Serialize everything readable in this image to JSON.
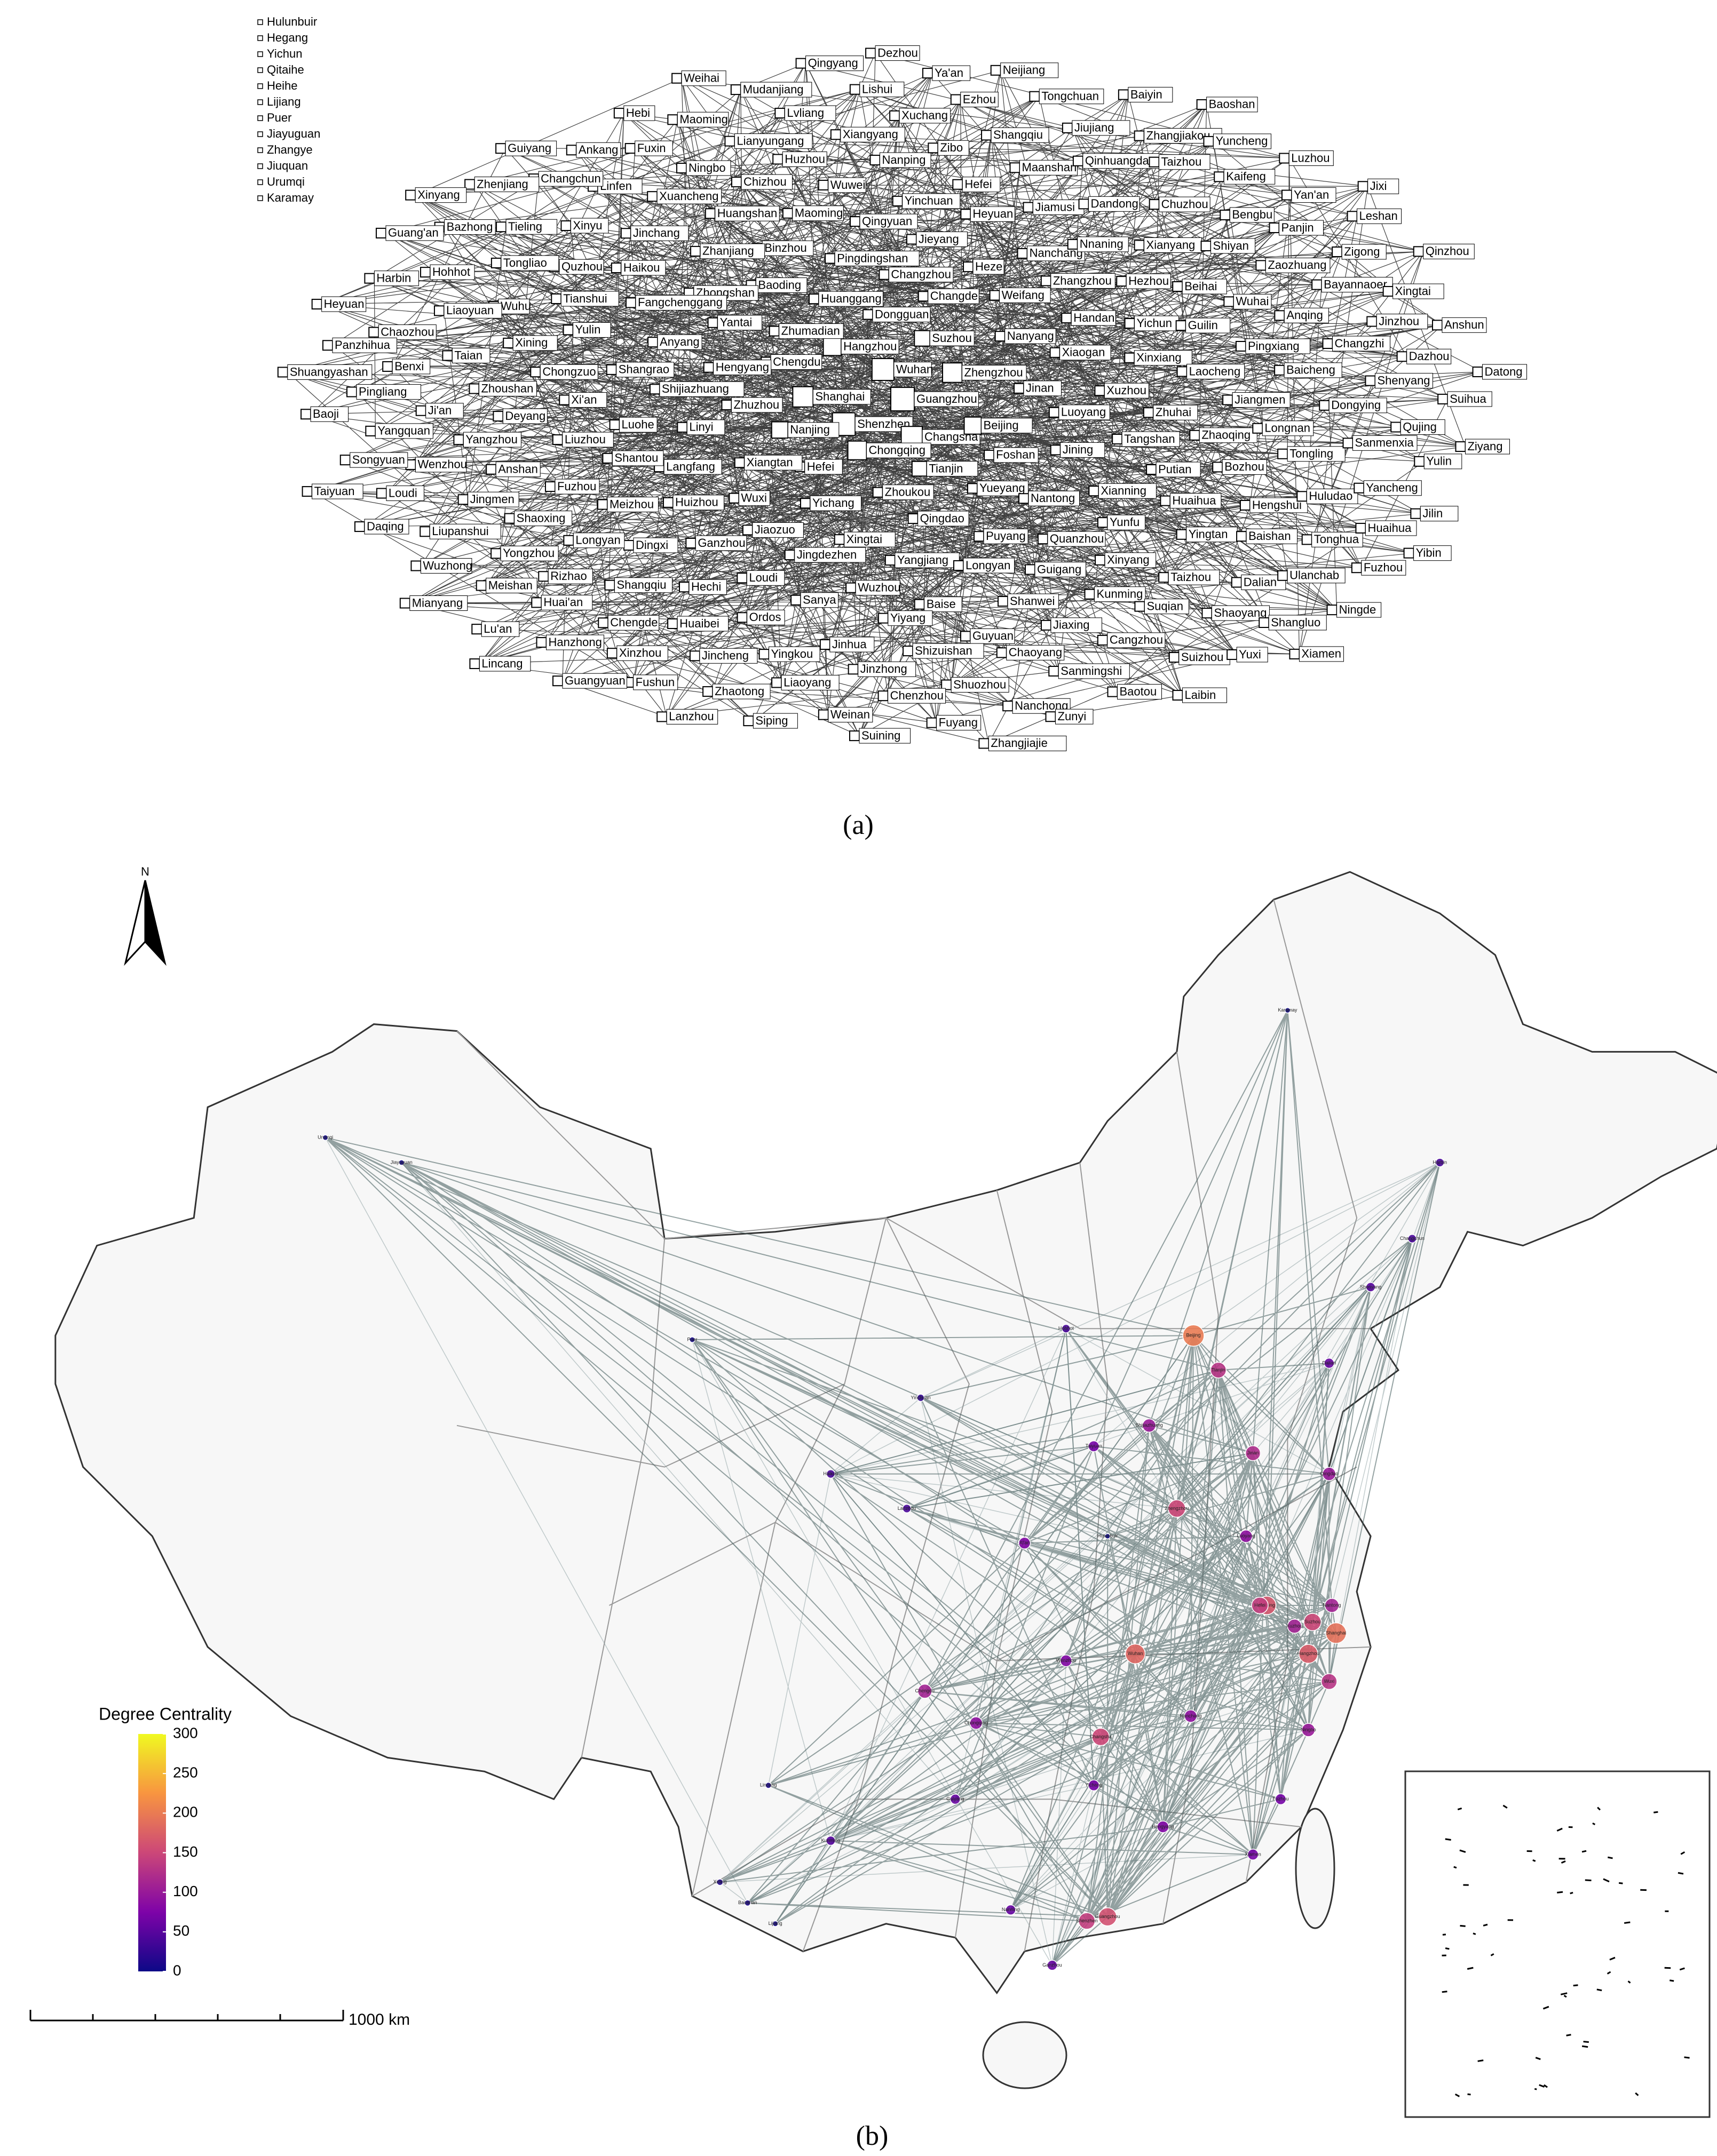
{
  "figure": {
    "panel_a": {
      "label": "(a)",
      "isolates": [
        "Hulunbuir",
        "Hegang",
        "Yichun",
        "Qitaihe",
        "Heihe",
        "Lijiang",
        "Puer",
        "Jiayuguan",
        "Zhangye",
        "Jiuquan",
        "Urumqi",
        "Karamay"
      ],
      "nodes": [
        "Guangzhou",
        "Shenzhen",
        "Wuhan",
        "Changsha",
        "Shanghai",
        "Zhengzhou",
        "Chongqing",
        "Hangzhou",
        "Beijing",
        "Nanjing",
        "Suzhou",
        "Tianjin",
        "Chengdu",
        "Jinan",
        "Hefei",
        "Dongguan",
        "Foshan",
        "Zhuzhou",
        "Nanyang",
        "Zhoukou",
        "Zhumadian",
        "Luoyang",
        "Xiangtan",
        "Changde",
        "Yueyang",
        "Hengyang",
        "Xiaogan",
        "Yichang",
        "Huanggang",
        "Jining",
        "Linyi",
        "Weifang",
        "Qingdao",
        "Yantai",
        "Xuzhou",
        "Wuxi",
        "Changzhou",
        "Nantong",
        "Shijiazhuang",
        "Handan",
        "Xingtai",
        "Baoding",
        "Tangshan",
        "Langfang",
        "Heze",
        "Puyang",
        "Anyang",
        "Xinxiang",
        "Jiaozuo",
        "Pingdingshan",
        "Xianning",
        "Luohe",
        "Zhangzhou",
        "Yangjiang",
        "Zhongshan",
        "Zhuhai",
        "Huizhou",
        "Jieyang",
        "Quanzhou",
        "Shangrao",
        "Yichun",
        "Jingdezhen",
        "Binzhou",
        "Putian",
        "Shantou",
        "Nanchang",
        "Longyan",
        "Fangchenggang",
        "Laocheng",
        "Ganzhou",
        "Qingyuan",
        "Yunfu",
        "Xi'an",
        "Hezhou",
        "Wuzhou",
        "Zhanjiang",
        "Zhaoqing",
        "Meizhou",
        "Heyuan",
        "Guigang",
        "Yulin",
        "Guilin",
        "Loudi",
        "Maoming",
        "Huaihua",
        "Liuzhou",
        "Nnaning",
        "Baise",
        "Haikou",
        "Jiangmen",
        "Dingxi",
        "Yinchuan",
        "Xinyang",
        "Chongzuo",
        "Beihai",
        "Sanya",
        "Huangshan",
        "Bozhou",
        "Fuzhou",
        "Jiamusi",
        "Shanwei",
        "Tianshui",
        "Pingxiang",
        "Hechi",
        "Wuwei",
        "Yingtan",
        "Deyang",
        "Xianyang",
        "Yiyang",
        "Jinchang",
        "Longnan",
        "Longyan",
        "Hefei",
        "Kunming",
        "Xining",
        "Wuhai",
        "Ordos",
        "Chizhou",
        "Hengshui",
        "Anshan",
        "Dandong",
        "Guyuan",
        "Quzhou",
        "Baicheng",
        "Shangqiu",
        "Nanping",
        "Taizhou",
        "Zhoushan",
        "Shiyan",
        "Jinhua",
        "Xuancheng",
        "Tongling",
        "Shaoxing",
        "Maanshan",
        "Jiaxing",
        "Wuhu",
        "Anqing",
        "Huaibei",
        "Huzhou",
        "Baishan",
        "Yangzhou",
        "Chuzhou",
        "Shizuishan",
        "Xinyu",
        "Dongying",
        "Rizhao",
        "Zibo",
        "Suqian",
        "Taian",
        "Zaozhuang",
        "Yingkou",
        "Ningbo",
        "Huludao",
        "Jingmen",
        "Qinhuangdao",
        "Chaoyang",
        "Tongliao",
        "Changzhi",
        "Chengde",
        "Xiangyang",
        "Dalian",
        "Ji'an",
        "Bengbu",
        "Jinzhong",
        "Linfen",
        "Sanmenxia",
        "Yongzhou",
        "Shangqiu",
        "Cangzhou",
        "Liaoyuan",
        "Bayannaoer",
        "Jincheng",
        "Lianyungang",
        "Tonghua",
        "Wenzhou",
        "Taizhou",
        "Shuozhou",
        "Tieling",
        "Shenyang",
        "Huai'an",
        "Xuchang",
        "Shaoyang",
        "Benxi",
        "Panjin",
        "Liaoyang",
        "Fuxin",
        "Yancheng",
        "Liupanshui",
        "Jiujiang",
        "Sanmingshi",
        "Hohhot",
        "Jinzhou",
        "Xinzhou",
        "Lvliang",
        "Ulanchab",
        "Yangquan",
        "Kaifeng",
        "Chenzhou",
        "Changchun",
        "Qujing",
        "Meishan",
        "Ezhou",
        "Suizhou",
        "Chaozhou",
        "Zigong",
        "Zhaotong",
        "Maoming",
        "Huaihua",
        "Loudi",
        "Zhangjiakou",
        "Nanchong",
        "Bazhong",
        "Dazhou",
        "Hanzhong",
        "Lishui",
        "Shangluo",
        "Pingliang",
        "Yan'an",
        "Weinan",
        "Ankang",
        "Yulin",
        "Wuzhong",
        "Tongchuan",
        "Baotou",
        "Harbin",
        "Xingtai",
        "Fushun",
        "Mudanjiang",
        "Fuzhou",
        "Songyuan",
        "Yuncheng",
        "Fuyang",
        "Zhenjiang",
        "Suihua",
        "Lu'an",
        "Ya'an",
        "Yuxi",
        "Panzhihua",
        "Leshan",
        "Siping",
        "Hebi",
        "Jilin",
        "Daqing",
        "Baiyin",
        "Zunyi",
        "Guang'an",
        "Anshun",
        "Guangyuan",
        "Qingyang",
        "Ningde",
        "Baoji",
        "Luzhou",
        "Suining",
        "Guiyang",
        "Ziyang",
        "Mianyang",
        "Neijiang",
        "Laibin",
        "Heyuan",
        "Qinzhou",
        "Lanzhou",
        "Weihai",
        "Yibin",
        "Taiyuan",
        "Baoshan",
        "Zhangjiajie",
        "Xinyang",
        "Datong",
        "Lincang",
        "Dezhou",
        "Xiamen",
        "Shuangyashan",
        "Jixi"
      ]
    },
    "panel_b": {
      "label": "(b)",
      "north": "N",
      "scale_bar": "1000 km",
      "legend": {
        "title": "Degree Centrality",
        "range": [
          0,
          300
        ],
        "ticks": [
          0,
          50,
          100,
          150,
          200,
          250,
          300
        ]
      },
      "cities": [
        {
          "name": "Beijing",
          "degree": 200
        },
        {
          "name": "Tianjin",
          "degree": 130
        },
        {
          "name": "Shanghai",
          "degree": 190
        },
        {
          "name": "Hangzhou",
          "degree": 170
        },
        {
          "name": "Nanjing",
          "degree": 165
        },
        {
          "name": "Suzhou",
          "degree": 150
        },
        {
          "name": "Wuhan",
          "degree": 180
        },
        {
          "name": "Changsha",
          "degree": 150
        },
        {
          "name": "Guangzhou",
          "degree": 160
        },
        {
          "name": "Shenzhen",
          "degree": 140
        },
        {
          "name": "Zhengzhou",
          "degree": 150
        },
        {
          "name": "Hefei",
          "degree": 140
        },
        {
          "name": "Jinan",
          "degree": 120
        },
        {
          "name": "Chengdu",
          "degree": 110
        },
        {
          "name": "Chongqing",
          "degree": 90
        },
        {
          "name": "Xi'an",
          "degree": 80
        },
        {
          "name": "Nanchang",
          "degree": 90
        },
        {
          "name": "Shijiazhuang",
          "degree": 100
        },
        {
          "name": "Qingdao",
          "degree": 100
        },
        {
          "name": "Nantong",
          "degree": 110
        },
        {
          "name": "Taiyuan",
          "degree": 70
        },
        {
          "name": "Fuzhou",
          "degree": 70
        },
        {
          "name": "Xiamen",
          "degree": 70
        },
        {
          "name": "Guiyang",
          "degree": 60
        },
        {
          "name": "Nanning",
          "degree": 60
        },
        {
          "name": "Kunming",
          "degree": 50
        },
        {
          "name": "Dalian",
          "degree": 60
        },
        {
          "name": "Shenyang",
          "degree": 50
        },
        {
          "name": "Changchun",
          "degree": 40
        },
        {
          "name": "Harbin",
          "degree": 40
        },
        {
          "name": "Hohhot",
          "degree": 40
        },
        {
          "name": "Lanzhou",
          "degree": 40
        },
        {
          "name": "Haikou",
          "degree": 40
        },
        {
          "name": "Yinchuan",
          "degree": 25
        },
        {
          "name": "Xining",
          "degree": 15
        },
        {
          "name": "Baoshan",
          "degree": 10
        },
        {
          "name": "Lincang",
          "degree": 10
        },
        {
          "name": "Lijiang",
          "degree": 5
        },
        {
          "name": "Puer",
          "degree": 5
        },
        {
          "name": "Jiayuguan",
          "degree": 3
        },
        {
          "name": "Urumqi",
          "degree": 3
        },
        {
          "name": "Karamay",
          "degree": 2
        },
        {
          "name": "Hulunbuir",
          "degree": 2
        },
        {
          "name": "Luoyang",
          "degree": 90
        },
        {
          "name": "Xuzhou",
          "degree": 110
        },
        {
          "name": "Wuxi",
          "degree": 130
        },
        {
          "name": "Ningbo",
          "degree": 100
        },
        {
          "name": "Wenzhou",
          "degree": 80
        },
        {
          "name": "Yichang",
          "degree": 70
        },
        {
          "name": "Hengyang",
          "degree": 80
        },
        {
          "name": "Ganzhou",
          "degree": 60
        },
        {
          "name": "Zhanjiang",
          "degree": 50
        }
      ]
    }
  }
}
